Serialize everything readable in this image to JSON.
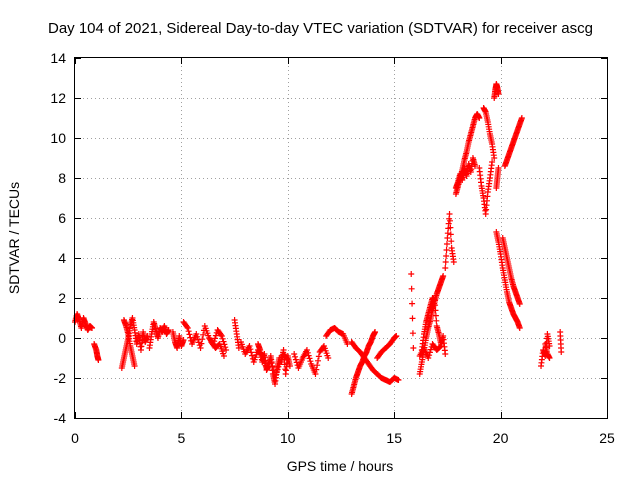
{
  "chart_data": {
    "type": "scatter",
    "title": "Day 104 of 2021, Sidereal Day-to-day VTEC variation (SDTVAR) for receiver ascg",
    "xlabel": "GPS time / hours",
    "ylabel": "SDTVAR / TECUs",
    "xlim": [
      0,
      25
    ],
    "ylim": [
      -4,
      14
    ],
    "xticks": [
      "0",
      "5",
      "10",
      "15",
      "20",
      "25"
    ],
    "yticks": [
      "-4",
      "-2",
      "0",
      "2",
      "4",
      "6",
      "8",
      "10",
      "12",
      "14"
    ],
    "grid": true,
    "marker": "+",
    "series": [
      {
        "name": "SDTVAR",
        "color": "#ff0000",
        "segments": [
          {
            "x": [
              0.0,
              0.1,
              0.2,
              0.3,
              0.4,
              0.5,
              0.6,
              0.7,
              0.8
            ],
            "y": [
              0.8,
              1.2,
              0.9,
              0.5,
              1.0,
              0.7,
              0.4,
              0.6,
              0.5
            ]
          },
          {
            "x": [
              0.9,
              1.0,
              1.05,
              1.1
            ],
            "y": [
              -0.3,
              -0.6,
              -0.9,
              -1.1
            ]
          },
          {
            "x": [
              2.2,
              2.3,
              2.4,
              2.5,
              2.6,
              2.7,
              2.8,
              2.9,
              3.0,
              3.1,
              3.2,
              3.3,
              3.4
            ],
            "y": [
              -1.5,
              -1.0,
              -0.5,
              0.0,
              0.6,
              1.0,
              0.4,
              -0.3,
              0.2,
              -0.6,
              0.3,
              -0.2,
              0.1
            ]
          },
          {
            "x": [
              2.3,
              2.4,
              2.5,
              2.6,
              2.7,
              2.8
            ],
            "y": [
              0.9,
              0.6,
              0.2,
              -0.4,
              -0.9,
              -1.4
            ]
          },
          {
            "x": [
              3.5,
              3.6,
              3.7,
              3.8,
              3.9,
              4.0,
              4.1,
              4.2,
              4.3,
              4.4
            ],
            "y": [
              -0.5,
              0.2,
              0.8,
              0.4,
              0.0,
              0.5,
              0.3,
              0.6,
              0.2,
              0.4
            ]
          },
          {
            "x": [
              4.6,
              4.7,
              4.8,
              4.9,
              5.0,
              5.1
            ],
            "y": [
              0.3,
              -0.2,
              -0.5,
              0.1,
              -0.4,
              -0.1
            ]
          },
          {
            "x": [
              5.1,
              5.3,
              5.5,
              5.7,
              5.9,
              6.1,
              6.3,
              6.5,
              6.7,
              6.9,
              7.1
            ],
            "y": [
              0.8,
              0.5,
              -0.3,
              0.2,
              -0.5,
              0.6,
              0.0,
              -0.3,
              0.4,
              0.1,
              -0.6
            ]
          },
          {
            "x": [
              6.4,
              6.6,
              6.8,
              7.0
            ],
            "y": [
              -0.2,
              -0.5,
              -0.3,
              -0.9
            ]
          },
          {
            "x": [
              7.5,
              7.6,
              7.7
            ],
            "y": [
              0.9,
              0.2,
              -0.5
            ]
          },
          {
            "x": [
              7.8,
              8.0,
              8.2,
              8.4,
              8.6,
              8.8,
              9.0,
              9.2,
              9.4,
              9.6,
              9.8,
              10.0
            ],
            "y": [
              -0.2,
              -0.8,
              -0.4,
              -1.2,
              -0.6,
              -0.9,
              -1.5,
              -1.0,
              -2.0,
              -1.3,
              -0.8,
              -1.1
            ]
          },
          {
            "x": [
              8.6,
              8.7,
              8.8,
              8.9,
              9.0,
              9.1,
              9.2,
              9.3,
              9.4,
              9.5,
              9.6
            ],
            "y": [
              -0.3,
              -0.6,
              -1.2,
              -0.8,
              -1.6,
              -1.4,
              -0.9,
              -1.8,
              -2.3,
              -1.5,
              -1.0
            ]
          },
          {
            "x": [
              9.7,
              9.8,
              9.9,
              10.0,
              10.1
            ],
            "y": [
              -1.2,
              -0.6,
              -1.8,
              -0.9,
              -1.4
            ]
          },
          {
            "x": [
              10.3,
              10.5,
              10.7,
              10.9,
              11.1,
              11.3,
              11.5,
              11.7,
              11.9
            ],
            "y": [
              -0.8,
              -1.5,
              -1.0,
              -0.6,
              -1.3,
              -1.8,
              -0.7,
              -0.4,
              -1.0
            ]
          },
          {
            "x": [
              11.8,
              12.0,
              12.2,
              12.4,
              12.6,
              12.8
            ],
            "y": [
              0.1,
              0.4,
              0.5,
              0.3,
              0.2,
              -0.3
            ]
          },
          {
            "x": [
              13.0,
              13.1,
              13.2,
              13.3,
              13.4,
              13.5,
              13.6,
              13.7,
              13.8,
              13.9,
              14.0,
              14.1
            ],
            "y": [
              -2.8,
              -2.4,
              -2.0,
              -1.7,
              -1.4,
              -1.2,
              -0.9,
              -0.7,
              -0.4,
              -0.2,
              0.1,
              0.3
            ]
          },
          {
            "x": [
              13.0,
              13.2,
              13.4,
              13.6,
              13.8,
              14.0,
              14.2,
              14.4,
              14.6,
              14.8,
              15.0,
              15.2
            ],
            "y": [
              -0.2,
              -0.5,
              -0.7,
              -1.0,
              -1.3,
              -1.6,
              -1.8,
              -2.0,
              -2.1,
              -2.2,
              -2.0,
              -2.1
            ]
          },
          {
            "x": [
              14.2,
              14.4,
              14.6,
              14.8,
              15.0,
              15.1
            ],
            "y": [
              -1.0,
              -0.7,
              -0.5,
              -0.3,
              0.0,
              0.1
            ]
          },
          {
            "x": [
              15.8,
              15.9
            ],
            "y": [
              3.2,
              -0.5
            ]
          },
          {
            "x": [
              16.2,
              16.3,
              16.4,
              16.5,
              16.6,
              16.7,
              16.8,
              16.9,
              17.0,
              17.1,
              17.2,
              17.3
            ],
            "y": [
              -1.8,
              -1.2,
              -0.6,
              0.0,
              0.5,
              0.9,
              1.4,
              1.8,
              2.2,
              2.5,
              2.8,
              3.1
            ]
          },
          {
            "x": [
              16.3,
              16.4,
              16.5,
              16.6,
              16.7,
              16.8,
              16.9,
              17.0,
              17.1,
              17.2,
              17.3,
              17.4
            ],
            "y": [
              -0.6,
              0.2,
              0.8,
              1.2,
              1.6,
              2.0,
              1.9,
              0.6,
              0.2,
              -0.3,
              0.1,
              -0.8
            ]
          },
          {
            "x": [
              16.2,
              16.4,
              16.6,
              16.8,
              17.0,
              17.2
            ],
            "y": [
              -0.9,
              -0.5,
              -1.0,
              -0.3,
              -0.6,
              -0.4
            ]
          },
          {
            "x": [
              17.4,
              17.5,
              17.6,
              17.7,
              17.8
            ],
            "y": [
              3.5,
              5.0,
              6.2,
              4.5,
              3.8
            ]
          },
          {
            "x": [
              17.9,
              18.0,
              18.1,
              18.2,
              18.3,
              18.4,
              18.5,
              18.6,
              18.7,
              18.8,
              18.9,
              19.0
            ],
            "y": [
              7.2,
              7.6,
              8.0,
              8.4,
              8.9,
              9.3,
              9.8,
              10.2,
              10.6,
              11.0,
              11.2,
              11.0
            ]
          },
          {
            "x": [
              17.9,
              18.0,
              18.1,
              18.2,
              18.3,
              18.4,
              18.5,
              18.6,
              18.7,
              18.8
            ],
            "y": [
              7.5,
              7.8,
              8.2,
              7.9,
              8.5,
              8.1,
              8.7,
              8.3,
              9.0,
              8.6
            ]
          },
          {
            "x": [
              19.0,
              19.1,
              19.2,
              19.3,
              19.4,
              19.5,
              19.6
            ],
            "y": [
              8.5,
              7.6,
              7.0,
              6.2,
              7.3,
              8.0,
              8.8
            ]
          },
          {
            "x": [
              19.2,
              19.3,
              19.4,
              19.5,
              19.6,
              19.7
            ],
            "y": [
              11.5,
              11.3,
              10.8,
              10.2,
              9.7,
              9.0
            ]
          },
          {
            "x": [
              19.7,
              19.75,
              19.8,
              19.85,
              19.9
            ],
            "y": [
              12.0,
              12.4,
              12.7,
              12.5,
              12.2
            ]
          },
          {
            "x": [
              19.8,
              19.85,
              19.9
            ],
            "y": [
              7.5,
              8.0,
              8.5
            ]
          },
          {
            "x": [
              19.8,
              19.9,
              20.0,
              20.1,
              20.2,
              20.3,
              20.4,
              20.5,
              20.6,
              20.7,
              20.8,
              20.9
            ],
            "y": [
              5.3,
              4.8,
              4.2,
              3.5,
              2.9,
              2.3,
              1.8,
              1.5,
              1.2,
              1.0,
              0.8,
              0.5
            ]
          },
          {
            "x": [
              20.1,
              20.2,
              20.3,
              20.4,
              20.5,
              20.6,
              20.7,
              20.8,
              20.9
            ],
            "y": [
              5.0,
              4.5,
              4.0,
              3.5,
              3.0,
              2.6,
              2.3,
              2.0,
              1.7
            ]
          },
          {
            "x": [
              20.2,
              20.3,
              20.4,
              20.5,
              20.6,
              20.7,
              20.8,
              20.9,
              21.0
            ],
            "y": [
              8.6,
              8.9,
              9.2,
              9.5,
              9.8,
              10.1,
              10.4,
              10.7,
              11.0
            ]
          },
          {
            "x": [
              21.9,
              22.0,
              22.1,
              22.2,
              22.3
            ],
            "y": [
              -1.4,
              -0.6,
              -0.9,
              0.2,
              -0.4
            ]
          },
          {
            "x": [
              22.1,
              22.2,
              22.3
            ],
            "y": [
              -0.3,
              -0.8,
              -1.0
            ]
          },
          {
            "x": [
              22.8,
              22.85
            ],
            "y": [
              0.3,
              -0.7
            ]
          }
        ]
      }
    ]
  }
}
